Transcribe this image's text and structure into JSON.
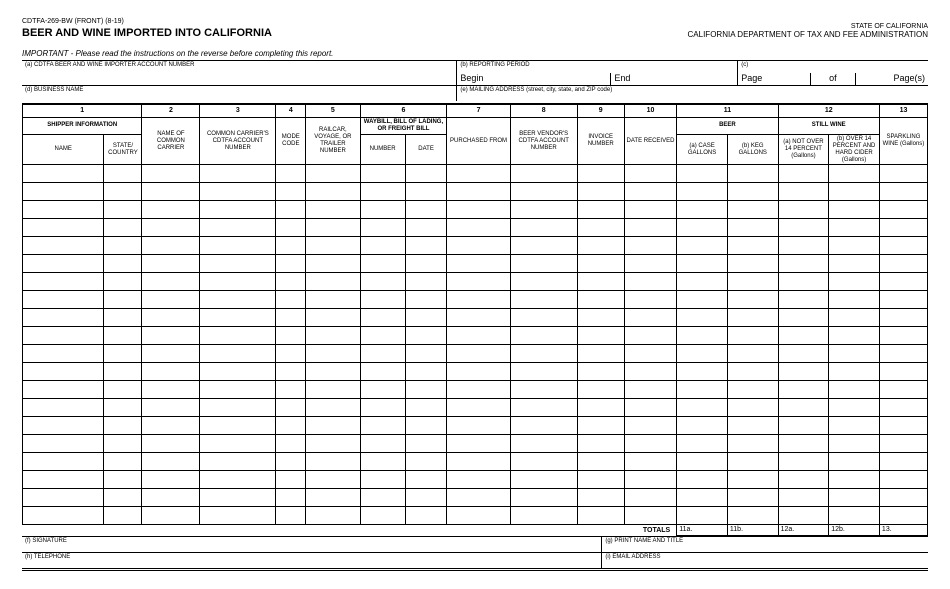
{
  "header": {
    "form_code": "CDTFA-269-BW (FRONT) (8-19)",
    "title": "BEER AND WINE IMPORTED INTO CALIFORNIA",
    "state": "STATE OF CALIFORNIA",
    "dept": "CALIFORNIA DEPARTMENT OF TAX AND FEE ADMINISTRATION",
    "important": "IMPORTANT - Please read the instructions on the reverse before completing this report."
  },
  "meta": {
    "a": "(a) CDTFA BEER AND WINE IMPORTER ACCOUNT NUMBER",
    "b": "(b) REPORTING PERIOD",
    "begin": "Begin",
    "end": "End",
    "c": "(c)",
    "page": "Page",
    "of": "of",
    "pages": "Page(s)",
    "d": "(d) BUSINESS NAME",
    "e": "(e) MAILING ADDRESS (street, city, state, and ZIP code)"
  },
  "cols": {
    "c1": "1",
    "c2": "2",
    "c3": "3",
    "c4": "4",
    "c5": "5",
    "c6": "6",
    "c7": "7",
    "c8": "8",
    "c9": "9",
    "c10": "10",
    "c11": "11",
    "c12": "12",
    "c13": "13",
    "shipper_info": "SHIPPER INFORMATION",
    "waybill": "WAYBILL, BILL OF LADING, OR FREIGHT BILL",
    "beer": "BEER",
    "still_wine": "STILL WINE",
    "name": "NAME",
    "state_country": "STATE/ COUNTRY",
    "common_carrier_name": "NAME OF COMMON CARRIER",
    "carrier_cdtfa": "COMMON CARRIER'S CDTFA ACCOUNT NUMBER",
    "mode": "MODE CODE",
    "railcar": "RAILCAR, VOYAGE, OR TRAILER NUMBER",
    "number": "NUMBER",
    "date": "DATE",
    "purchased_from": "PURCHASED FROM",
    "vendor_cdtfa": "BEER VENDOR'S CDTFA ACCOUNT NUMBER",
    "invoice": "INVOICE NUMBER",
    "date_received": "DATE RECEIVED",
    "case_gal": "(a) CASE GALLONS",
    "keg_gal": "(b) KEG GALLONS",
    "not_over_14": "(a) NOT OVER 14 PERCENT (Gallons)",
    "over_14": "(b) OVER 14 PERCENT AND HARD CIDER (Gallons)",
    "sparkling": "SPARKLING WINE (Gallons)"
  },
  "totals": {
    "label": "TOTALS",
    "t11a": "11a.",
    "t11b": "11b.",
    "t12a": "12a.",
    "t12b": "12b.",
    "t13": "13."
  },
  "sig": {
    "f": "(f) SIGNATURE",
    "g": "(g) PRINT NAME AND TITLE",
    "h": "(h) TELEPHONE",
    "i": "(i) EMAIL ADDRESS"
  },
  "layout": {
    "row_count": 20,
    "col_widths_pct": [
      9.0,
      4.2,
      6.4,
      8.4,
      3.3,
      6.0,
      5.0,
      4.6,
      7.0,
      7.4,
      5.2,
      5.8,
      5.6,
      5.6,
      5.6,
      5.6,
      5.3
    ]
  }
}
